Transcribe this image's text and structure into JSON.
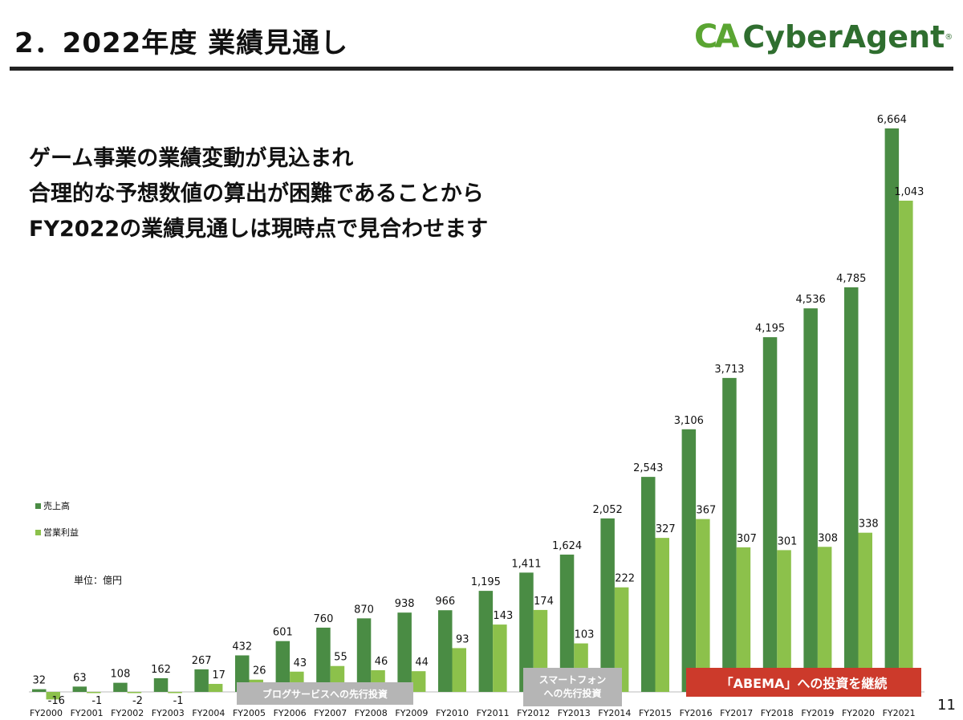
{
  "header": {
    "title": "2．2022年度 業績見通し",
    "logo_text": "CyberAgent",
    "logo_mark": "CA"
  },
  "message": [
    "ゲーム事業の業績変動が見込まれ",
    "合理的な予想数値の算出が困難であることから",
    "FY2022の業績見通しは現時点で見合わせます"
  ],
  "unit_label": "単位：億円",
  "annotations": {
    "blog": "ブログサービスへの先行投資",
    "smartphone_1": "スマートフォン",
    "smartphone_2": "への先行投資",
    "abema": "「ABEMA」への投資を継続"
  },
  "page_number": "11",
  "colors": {
    "sales": "#4a8c44",
    "op": "#8cc14b",
    "gray": "#b5b5b5",
    "red": "#cc3a2b"
  },
  "chart_data": {
    "type": "bar",
    "categories": [
      "FY2000",
      "FY2001",
      "FY2002",
      "FY2003",
      "FY2004",
      "FY2005",
      "FY2006",
      "FY2007",
      "FY2008",
      "FY2009",
      "FY2010",
      "FY2011",
      "FY2012",
      "FY2013",
      "FY2014",
      "FY2015",
      "FY2016",
      "FY2017",
      "FY2018",
      "FY2019",
      "FY2020",
      "FY2021"
    ],
    "series": [
      {
        "name": "売上高",
        "values": [
          32,
          63,
          108,
          162,
          267,
          432,
          601,
          760,
          870,
          938,
          966,
          1195,
          1411,
          1624,
          2052,
          2543,
          3106,
          3713,
          4195,
          4536,
          4785,
          6664
        ],
        "labels": [
          "32",
          "63",
          "108",
          "162",
          "267",
          "432",
          "601",
          "760",
          "870",
          "938",
          "966",
          "1,195",
          "1,411",
          "1,624",
          "2,052",
          "2,543",
          "3,106",
          "3,713",
          "4,195",
          "4,536",
          "4,785",
          "6,664"
        ]
      },
      {
        "name": "営業利益",
        "values": [
          -16,
          -1,
          -2,
          -1,
          17,
          26,
          43,
          55,
          46,
          44,
          93,
          143,
          174,
          103,
          222,
          327,
          367,
          307,
          301,
          308,
          338,
          1043
        ],
        "labels": [
          "-16",
          "-1",
          "-2",
          "-1",
          "17",
          "26",
          "43",
          "55",
          "46",
          "44",
          "93",
          "143",
          "174",
          "103",
          "222",
          "327",
          "367",
          "307",
          "301",
          "308",
          "338",
          "1,043"
        ]
      }
    ],
    "ylim": [
      -16,
      6664
    ],
    "legend": "left",
    "grid": false
  }
}
